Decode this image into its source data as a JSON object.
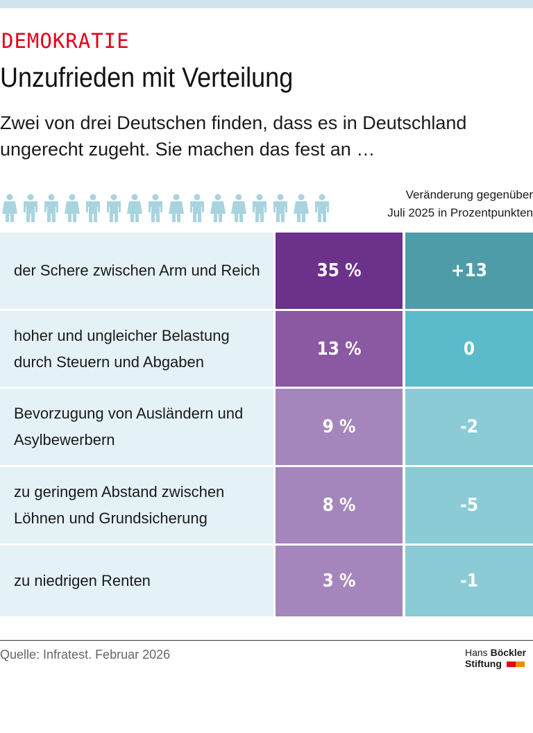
{
  "header": {
    "kicker": "DEMOKRATIE",
    "title": "Unzufrieden mit Verteilung",
    "subtitle": "Zwei von drei Deutschen finden, dass es in Deutschland ungerecht zugeht. Sie machen das fest an …"
  },
  "people_icons": [
    "female",
    "male",
    "male",
    "female",
    "male",
    "male",
    "female",
    "male",
    "female",
    "male",
    "female",
    "female",
    "male",
    "male",
    "female",
    "male"
  ],
  "chart_data": {
    "type": "table",
    "column_note": [
      "Veränderung gegenüber",
      "Juli 2025 in Prozentpunkten"
    ],
    "rows": [
      {
        "label": "der Schere zwischen Arm und Reich",
        "share": "35 %",
        "change": "+13",
        "share_color": "#6b318b",
        "change_color": "#4e9ca8"
      },
      {
        "label": "hoher und ungleicher Belastung durch Steuern und Abgaben",
        "share": "13 %",
        "change": "0",
        "share_color": "#8b58a2",
        "change_color": "#5bbbcb"
      },
      {
        "label": "Bevorzugung von Ausländern und Asylbewerbern",
        "share": "9 %",
        "change": "-2",
        "share_color": "#a586bc",
        "change_color": "#8acbd5"
      },
      {
        "label": "zu geringem Abstand zwischen Löhnen und Grundsicherung",
        "share": "8 %",
        "change": "-5",
        "share_color": "#a586bc",
        "change_color": "#8acbd5"
      },
      {
        "label": "zu niedrigen Renten",
        "share": "3 %",
        "change": "-1",
        "share_color": "#a586bc",
        "change_color": "#8acbd5"
      }
    ]
  },
  "footer": {
    "source": "Quelle: Infratest. Februar 2026",
    "logo_line1_a": "Hans",
    "logo_line1_b": "Böckler",
    "logo_line2": "Stiftung"
  }
}
